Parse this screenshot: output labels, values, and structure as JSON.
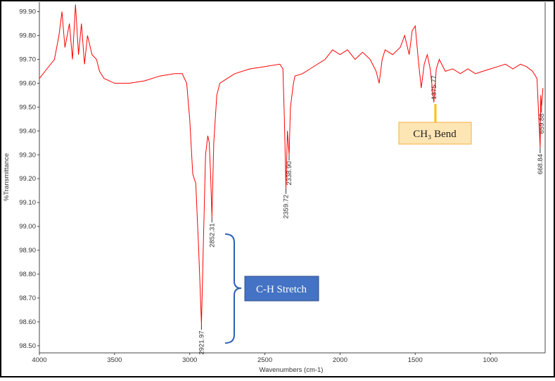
{
  "chart_data": {
    "type": "line",
    "y_label": "%Transmittance",
    "x_label": "Wavenumbers (cm-1)",
    "color": "#ff0000",
    "xlim": [
      4000,
      645
    ],
    "ylim": [
      98.47,
      99.94
    ],
    "xticks": [
      4000,
      3500,
      3000,
      2500,
      2000,
      1500,
      1000
    ],
    "yticks": [
      {
        "value": 99.9,
        "label": "99.90"
      },
      {
        "value": 99.8,
        "label": "99.80"
      },
      {
        "value": 99.7,
        "label": "99.70"
      },
      {
        "value": 99.6,
        "label": "99.60"
      },
      {
        "value": 99.5,
        "label": "99.50"
      },
      {
        "value": 99.4,
        "label": "99.40"
      },
      {
        "value": 99.3,
        "label": "99.30"
      },
      {
        "value": 99.2,
        "label": "99.20"
      },
      {
        "value": 99.1,
        "label": "99.10"
      },
      {
        "value": 99.0,
        "label": "99.00"
      },
      {
        "value": 98.9,
        "label": "98.90"
      },
      {
        "value": 98.8,
        "label": "98.80"
      },
      {
        "value": 98.7,
        "label": "98.70"
      },
      {
        "value": 98.6,
        "label": "98.60"
      },
      {
        "value": 98.5,
        "label": "98.50"
      }
    ],
    "x": [
      4000,
      3950,
      3900,
      3870,
      3850,
      3830,
      3800,
      3780,
      3760,
      3740,
      3720,
      3700,
      3680,
      3650,
      3620,
      3600,
      3570,
      3500,
      3400,
      3300,
      3200,
      3100,
      3050,
      3020,
      3000,
      2980,
      2960,
      2940,
      2921.97,
      2910,
      2895,
      2880,
      2870,
      2860,
      2852.31,
      2840,
      2820,
      2800,
      2750,
      2700,
      2600,
      2500,
      2400,
      2380,
      2370,
      2359.72,
      2350,
      2338.9,
      2330,
      2310,
      2300,
      2250,
      2200,
      2100,
      2050,
      2000,
      1950,
      1900,
      1850,
      1800,
      1760,
      1740,
      1720,
      1700,
      1650,
      1600,
      1570,
      1540,
      1520,
      1500,
      1480,
      1460,
      1440,
      1420,
      1400,
      1375.77,
      1360,
      1340,
      1300,
      1250,
      1200,
      1150,
      1100,
      1050,
      1000,
      950,
      900,
      850,
      800,
      760,
      720,
      690,
      668.84,
      665,
      659.88,
      650
    ],
    "values": [
      99.62,
      99.66,
      99.7,
      99.8,
      99.9,
      99.75,
      99.85,
      99.7,
      99.93,
      99.72,
      99.85,
      99.68,
      99.8,
      99.72,
      99.7,
      99.65,
      99.62,
      99.6,
      99.6,
      99.61,
      99.63,
      99.64,
      99.64,
      99.6,
      99.45,
      99.22,
      99.18,
      98.9,
      98.59,
      98.9,
      99.3,
      99.38,
      99.35,
      99.2,
      99.04,
      99.35,
      99.55,
      99.6,
      99.62,
      99.64,
      99.66,
      99.67,
      99.68,
      99.66,
      99.45,
      99.16,
      99.4,
      99.3,
      99.5,
      99.6,
      99.63,
      99.64,
      99.66,
      99.7,
      99.74,
      99.72,
      99.74,
      99.7,
      99.73,
      99.7,
      99.65,
      99.6,
      99.7,
      99.74,
      99.72,
      99.75,
      99.8,
      99.72,
      99.82,
      99.84,
      99.7,
      99.58,
      99.68,
      99.72,
      99.66,
      99.52,
      99.66,
      99.7,
      99.65,
      99.66,
      99.64,
      99.66,
      99.64,
      99.65,
      99.66,
      99.67,
      99.68,
      99.66,
      99.68,
      99.67,
      99.65,
      99.62,
      99.33,
      99.55,
      99.5,
      99.58
    ],
    "annotations": [
      {
        "text": "2921.97",
        "x": 2921.97,
        "y": 98.59
      },
      {
        "text": "2852.31",
        "x": 2852.31,
        "y": 99.04
      },
      {
        "text": "2359.72",
        "x": 2359.72,
        "y": 99.16
      },
      {
        "text": "2338.90",
        "x": 2338.9,
        "y": 99.3
      },
      {
        "text": "1375.77",
        "x": 1375.77,
        "y": 99.52
      },
      {
        "text": "668.84",
        "x": 668.84,
        "y": 99.33
      },
      {
        "text": "659.88",
        "x": 659.88,
        "y": 99.5
      }
    ],
    "callouts": [
      "C-H Stretch",
      "CH₃ Bend"
    ]
  }
}
